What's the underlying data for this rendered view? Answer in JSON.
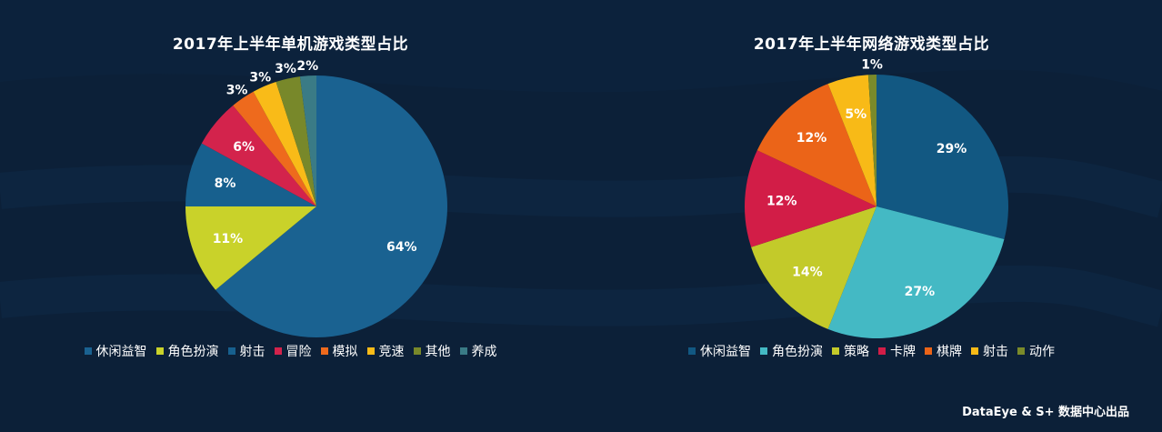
{
  "chart_data": [
    {
      "type": "pie",
      "title": "2017年上半年单机游戏类型占比",
      "categories": [
        "休闲益智",
        "角色扮演",
        "射击",
        "冒险",
        "模拟",
        "竞速",
        "其他",
        "养成"
      ],
      "values": [
        64,
        11,
        8,
        6,
        3,
        3,
        3,
        2
      ],
      "labels": [
        "64%",
        "11%",
        "8%",
        "6%",
        "3%",
        "3%",
        "3%",
        "2%"
      ],
      "colors": [
        "#1a6291",
        "#c9d22a",
        "#17608e",
        "#d3234c",
        "#ee6a1d",
        "#f9bb18",
        "#78882a",
        "#3a7b86"
      ],
      "legend_position": "bottom"
    },
    {
      "type": "pie",
      "title": "2017年上半年网络游戏类型占比",
      "categories": [
        "休闲益智",
        "角色扮演",
        "策略",
        "卡牌",
        "棋牌",
        "射击",
        "动作"
      ],
      "values": [
        29,
        27,
        14,
        12,
        12,
        5,
        1
      ],
      "labels": [
        "29%",
        "27%",
        "14%",
        "12%",
        "12%",
        "5%",
        "1%"
      ],
      "colors": [
        "#125882",
        "#44b9c4",
        "#c3ca2a",
        "#d21d47",
        "#eb6418",
        "#f8ba17",
        "#7a8a2a"
      ],
      "legend_position": "bottom"
    }
  ],
  "footer": "DataEye & S+ 数据中心出品"
}
